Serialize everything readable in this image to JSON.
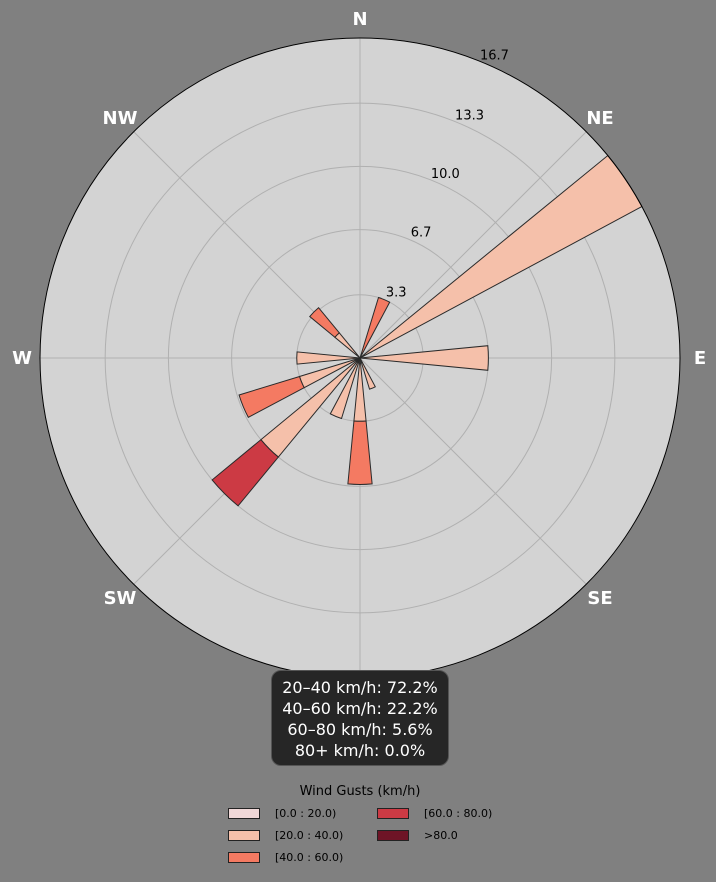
{
  "chart_data": {
    "type": "windrose",
    "directions": [
      "N",
      "NE",
      "E",
      "SE",
      "S",
      "SW",
      "W",
      "NW"
    ],
    "radial_ticks": [
      "3.3",
      "6.7",
      "10.0",
      "13.3",
      "16.7"
    ],
    "radial_tick_values": [
      3.3,
      6.7,
      10.0,
      13.3,
      16.7
    ],
    "rmax": 16.7,
    "bins": [
      "[0.0 : 20.0)",
      "[20.0 : 40.0)",
      "[40.0 : 60.0)",
      "[60.0 : 80.0)",
      ">80.0"
    ],
    "bin_colors": [
      "#f0d8d8",
      "#f5c0aa",
      "#f47a62",
      "#cc3a44",
      "#6e1426"
    ],
    "sectors": [
      {
        "angle": 0,
        "stack": [
          0,
          0,
          0,
          0,
          0
        ]
      },
      {
        "angle": 22.5,
        "stack": [
          0,
          0,
          3.3,
          0,
          0
        ]
      },
      {
        "angle": 45,
        "stack": [
          0,
          0,
          0,
          0,
          0
        ]
      },
      {
        "angle": 56.25,
        "stack": [
          0,
          16.7,
          0,
          0,
          0
        ]
      },
      {
        "angle": 90,
        "stack": [
          0,
          6.7,
          0,
          0,
          0
        ]
      },
      {
        "angle": 135,
        "stack": [
          0,
          0,
          0,
          0,
          0
        ]
      },
      {
        "angle": 157.5,
        "stack": [
          0,
          1.7,
          0,
          0,
          0
        ]
      },
      {
        "angle": 180,
        "stack": [
          0,
          3.3,
          3.3,
          0,
          0
        ]
      },
      {
        "angle": 202.5,
        "stack": [
          0,
          3.3,
          0,
          0,
          0
        ]
      },
      {
        "angle": 225,
        "stack": [
          0,
          6.7,
          0,
          3.3,
          0
        ]
      },
      {
        "angle": 247.5,
        "stack": [
          0,
          3.3,
          3.3,
          0,
          0
        ]
      },
      {
        "angle": 270,
        "stack": [
          0,
          3.3,
          0,
          0,
          0
        ]
      },
      {
        "angle": 315,
        "stack": [
          0,
          1.7,
          1.7,
          0,
          0
        ]
      }
    ],
    "legend": {
      "title": "Wind Gusts (km/h)",
      "entries": [
        "[0.0 : 20.0)",
        "[20.0 : 40.0)",
        "[40.0 : 60.0)",
        "[60.0 : 80.0)",
        ">80.0"
      ]
    },
    "summary": [
      "20–40 km/h: 72.2%",
      "40–60 km/h: 22.2%",
      "60–80 km/h: 5.6%",
      "80+ km/h: 0.0%"
    ]
  },
  "colors": {
    "background": "#808080",
    "plot_face": "#d3d3d3",
    "grid": "#b0b0b0"
  }
}
